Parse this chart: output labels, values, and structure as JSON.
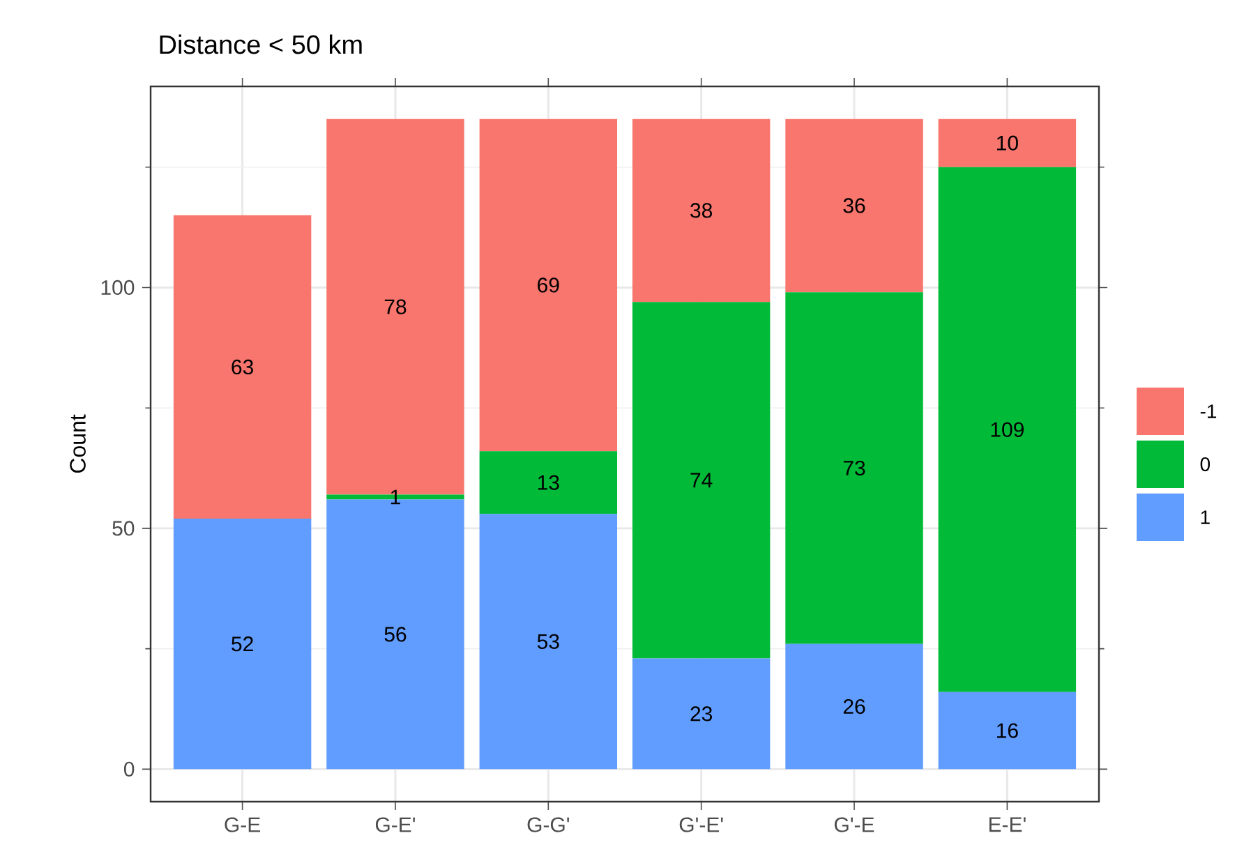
{
  "chart_data": {
    "type": "bar",
    "title": "Distance < 50 km",
    "ylabel": "Count",
    "categories": [
      "G-E",
      "G-E'",
      "G-G'",
      "G'-E'",
      "G'-E",
      "E-E'"
    ],
    "stacked": true,
    "data_labels": true,
    "grid": true,
    "legend": "right",
    "ylim": [
      -6.75,
      141.75
    ],
    "yticks": [
      0,
      50,
      100
    ],
    "series": [
      {
        "name": "1",
        "color": "#619cff",
        "values": [
          52,
          56,
          53,
          23,
          26,
          16
        ]
      },
      {
        "name": "0",
        "color": "#00ba38",
        "values": [
          null,
          1,
          13,
          74,
          73,
          109
        ]
      },
      {
        "name": "-1",
        "color": "#f8766d",
        "values": [
          63,
          78,
          69,
          38,
          36,
          10
        ]
      }
    ]
  }
}
